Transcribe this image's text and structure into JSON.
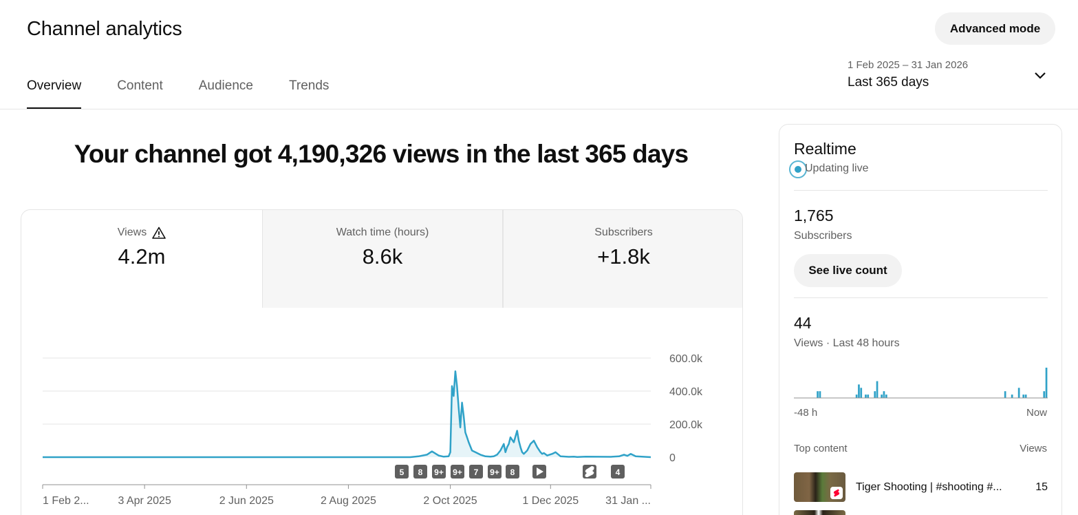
{
  "header": {
    "title": "Channel analytics",
    "advanced_mode": "Advanced mode"
  },
  "tabs": [
    {
      "label": "Overview",
      "active": true
    },
    {
      "label": "Content",
      "active": false
    },
    {
      "label": "Audience",
      "active": false
    },
    {
      "label": "Trends",
      "active": false
    }
  ],
  "date_range": {
    "range": "1 Feb 2025 – 31 Jan 2026",
    "preset": "Last 365 days"
  },
  "headline": "Your channel got 4,190,326 views in the last 365 days",
  "metrics": [
    {
      "label": "Views",
      "value": "4.2m",
      "warning": true
    },
    {
      "label": "Watch time (hours)",
      "value": "8.6k",
      "warning": false
    },
    {
      "label": "Subscribers",
      "value": "+1.8k",
      "warning": false
    }
  ],
  "chart_data": {
    "type": "area",
    "title": "",
    "xlabel": "",
    "ylabel": "",
    "ylim": [
      0,
      600000
    ],
    "y_ticks": [
      0,
      200000,
      400000,
      600000
    ],
    "y_tick_labels": [
      "0",
      "200.0k",
      "400.0k",
      "600.0k"
    ],
    "x_tick_labels": [
      "1 Feb 2...",
      "3 Apr 2025",
      "2 Jun 2025",
      "2 Aug 2025",
      "2 Oct 2025",
      "1 Dec 2025",
      "31 Jan ..."
    ],
    "x_range": [
      0,
      364
    ],
    "grid": true,
    "color": "#30a2c8",
    "series": [
      {
        "x": [
          0,
          220,
          225,
          230,
          233,
          237,
          240,
          243,
          244,
          245,
          246,
          247,
          248,
          249,
          250,
          251,
          252,
          253,
          254,
          255,
          257,
          259,
          262,
          265,
          268,
          270,
          272,
          274,
          276,
          277,
          278,
          279,
          280,
          282,
          284,
          285,
          286,
          287,
          288,
          290,
          292,
          294,
          296,
          298,
          299,
          300,
          302,
          305,
          307,
          310,
          315,
          318,
          320,
          325,
          340,
          345,
          348,
          350,
          352,
          355,
          364
        ],
        "y": [
          0,
          0,
          5000,
          15000,
          35000,
          10000,
          3000,
          5000,
          30000,
          430000,
          370000,
          520000,
          430000,
          300000,
          180000,
          330000,
          250000,
          150000,
          120000,
          90000,
          40000,
          30000,
          15000,
          5000,
          3000,
          5000,
          15000,
          40000,
          80000,
          30000,
          60000,
          80000,
          120000,
          90000,
          160000,
          100000,
          60000,
          30000,
          20000,
          40000,
          80000,
          100000,
          60000,
          30000,
          20000,
          25000,
          10000,
          20000,
          30000,
          5000,
          2000,
          3000,
          1000,
          3000,
          2000,
          5000,
          15000,
          8000,
          20000,
          5000,
          0
        ]
      }
    ],
    "markers": [
      "5",
      "8",
      "9+",
      "9+",
      "7",
      "9+",
      "8",
      "play",
      "shorts",
      "4"
    ]
  },
  "realtime": {
    "title": "Realtime",
    "status": "Updating live",
    "subscribers_value": "1,765",
    "subscribers_label": "Subscribers",
    "live_count_button": "See live count",
    "views_value": "44",
    "views_label": "Views · Last 48 hours",
    "bar_values": [
      0,
      0,
      0,
      0,
      0,
      0,
      0,
      0,
      0,
      0,
      2,
      2,
      0,
      0,
      0,
      0,
      0,
      0,
      0,
      0,
      0,
      0,
      0,
      0,
      0,
      0,
      0,
      1,
      4,
      3,
      0,
      1,
      1,
      0,
      0,
      2,
      5,
      0,
      1,
      2,
      1,
      0,
      0,
      0,
      0,
      0,
      0,
      0,
      0,
      0,
      0,
      0,
      0,
      0,
      0,
      0,
      0,
      0,
      0,
      0,
      0,
      0,
      0,
      0,
      0,
      0,
      0,
      0,
      0,
      0,
      0,
      0,
      0,
      0,
      0,
      0,
      0,
      0,
      0,
      0,
      0,
      0,
      0,
      0,
      0,
      0,
      0,
      0,
      0,
      0,
      0,
      0,
      2,
      0,
      0,
      1,
      0,
      0,
      3,
      0,
      1,
      1,
      0,
      0,
      0,
      0,
      0,
      0,
      0,
      2,
      9
    ],
    "axis_start": "-48 h",
    "axis_end": "Now",
    "top_content_label": "Top content",
    "views_col_label": "Views",
    "top_content": [
      {
        "title": "Tiger Shooting | #shooting #...",
        "views": "15"
      }
    ]
  }
}
